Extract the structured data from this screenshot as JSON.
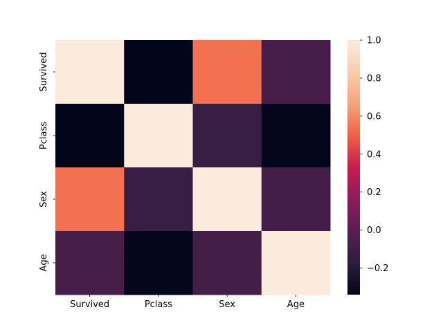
{
  "chart_data": {
    "type": "heatmap",
    "title": "",
    "xlabel": "",
    "ylabel": "",
    "x_categories": [
      "Survived",
      "Pclass",
      "Sex",
      "Age"
    ],
    "y_categories": [
      "Survived",
      "Pclass",
      "Sex",
      "Age"
    ],
    "values": [
      [
        1.0,
        -0.34,
        0.54,
        -0.08
      ],
      [
        -0.34,
        1.0,
        -0.13,
        -0.33
      ],
      [
        0.54,
        -0.13,
        1.0,
        -0.09
      ],
      [
        -0.08,
        -0.33,
        -0.09,
        1.0
      ]
    ],
    "colormap": "rocket",
    "colorbar": {
      "vmin": -0.34,
      "vmax": 1.0,
      "ticks": [
        -0.2,
        0.0,
        0.2,
        0.4,
        0.6,
        0.8,
        1.0
      ],
      "tick_labels": [
        "−0.2",
        "0.0",
        "0.2",
        "0.4",
        "0.6",
        "0.8",
        "1.0"
      ]
    },
    "grid": false,
    "legend": "colorbar-right"
  }
}
